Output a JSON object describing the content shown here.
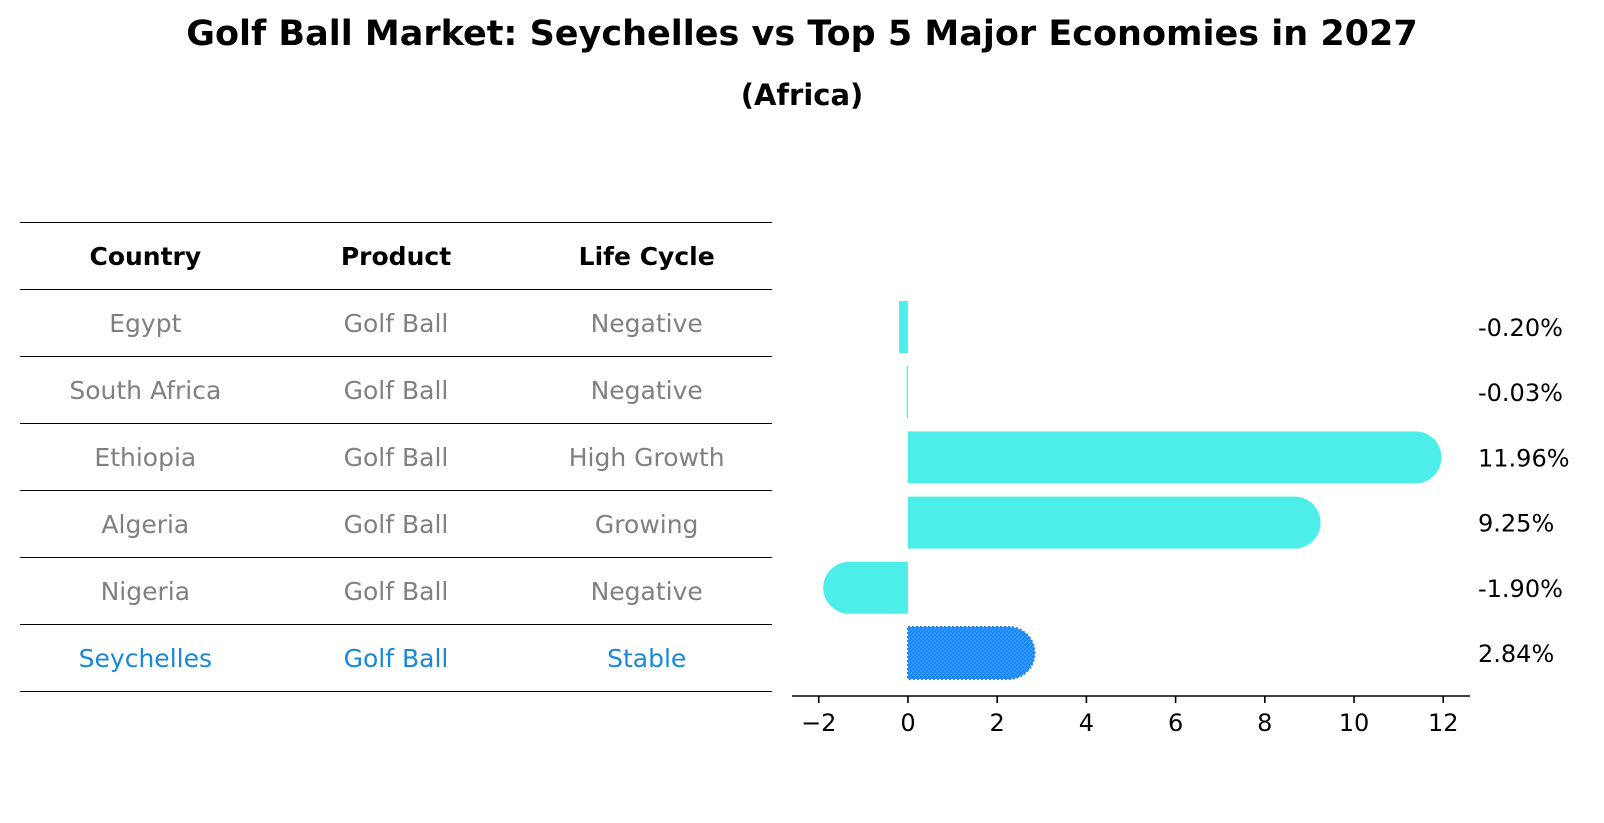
{
  "title": "Golf Ball Market: Seychelles vs Top 5 Major Economies in 2027",
  "subtitle": "(Africa)",
  "table": {
    "headers": [
      "Country",
      "Product",
      "Life Cycle"
    ],
    "rows": [
      {
        "country": "Egypt",
        "product": "Golf Ball",
        "life_cycle": "Negative"
      },
      {
        "country": "South Africa",
        "product": "Golf Ball",
        "life_cycle": "Negative"
      },
      {
        "country": "Ethiopia",
        "product": "Golf Ball",
        "life_cycle": "High Growth"
      },
      {
        "country": "Algeria",
        "product": "Golf Ball",
        "life_cycle": "Growing"
      },
      {
        "country": "Nigeria",
        "product": "Golf Ball",
        "life_cycle": "Negative"
      },
      {
        "country": "Seychelles",
        "product": "Golf Ball",
        "life_cycle": "Stable"
      }
    ],
    "highlight_country": "Seychelles"
  },
  "chart_data": {
    "type": "bar",
    "orientation": "horizontal",
    "categories": [
      "Egypt",
      "South Africa",
      "Ethiopia",
      "Algeria",
      "Nigeria",
      "Seychelles"
    ],
    "values": [
      -0.2,
      -0.03,
      11.96,
      9.25,
      -1.9,
      2.84
    ],
    "value_labels": [
      "-0.20%",
      "-0.03%",
      "11.96%",
      "9.25%",
      "-1.90%",
      "2.84%"
    ],
    "xlim": [
      -2.6,
      12.6
    ],
    "xticks": [
      -2,
      0,
      2,
      4,
      6,
      8,
      10,
      12
    ],
    "xtick_labels": [
      "−2",
      "0",
      "2",
      "4",
      "6",
      "8",
      "10",
      "12"
    ],
    "xlabel": "",
    "ylabel": "",
    "grid": false,
    "highlight_category": "Seychelles",
    "colors": {
      "default": "#4deeea",
      "highlight": "#1a87f5"
    }
  }
}
